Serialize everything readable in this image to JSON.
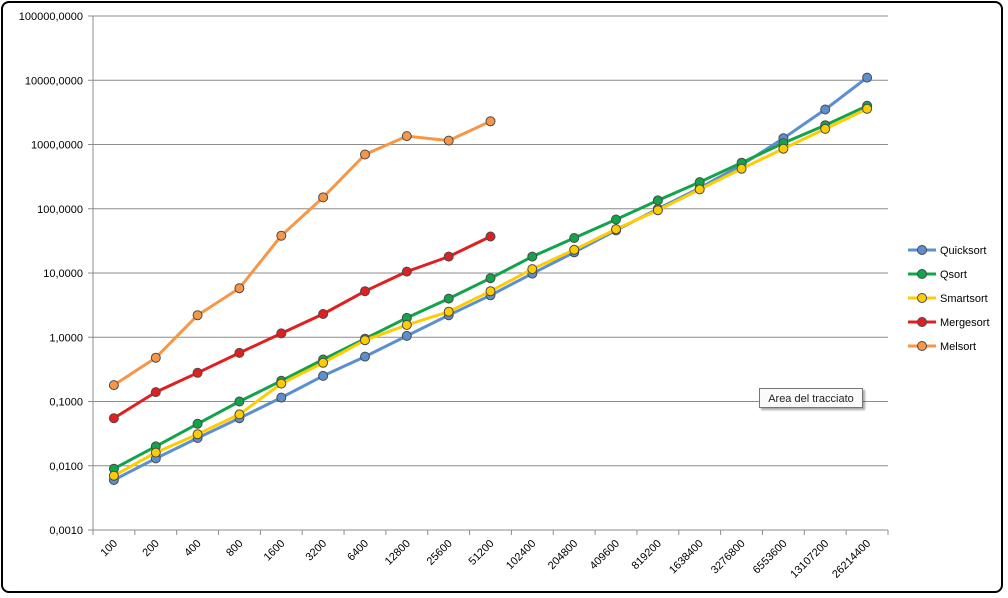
{
  "chart_data": {
    "type": "line",
    "yscale": "log",
    "ylim": [
      0.001,
      100000
    ],
    "grid": true,
    "legend_position": "right",
    "y_tick_labels": [
      "0,0010",
      "0,0100",
      "0,1000",
      "1,0000",
      "10,0000",
      "100,0000",
      "1000,0000",
      "10000,0000",
      "100000,0000"
    ],
    "categories": [
      "100",
      "200",
      "400",
      "800",
      "1600",
      "3200",
      "6400",
      "12800",
      "25600",
      "51200",
      "102400",
      "204800",
      "409600",
      "819200",
      "1638400",
      "3276800",
      "6553600",
      "13107200",
      "26214400"
    ],
    "series": [
      {
        "name": "Quicksort",
        "color": "#5b8fd0",
        "values": [
          0.006,
          0.013,
          0.027,
          0.055,
          0.115,
          0.25,
          0.5,
          1.05,
          2.2,
          4.5,
          9.8,
          21,
          46,
          100,
          210,
          480,
          1250,
          3500,
          11000
        ]
      },
      {
        "name": "Qsort",
        "color": "#12a44a",
        "values": [
          0.009,
          0.02,
          0.045,
          0.1,
          0.21,
          0.45,
          0.95,
          2.0,
          4.0,
          8.3,
          18,
          35,
          68,
          135,
          260,
          520,
          1050,
          2000,
          4000
        ]
      },
      {
        "name": "Smartsort",
        "color": "#ffcc00",
        "values": [
          0.007,
          0.016,
          0.031,
          0.063,
          0.19,
          0.4,
          0.9,
          1.55,
          2.5,
          5.2,
          11.5,
          23,
          48,
          95,
          200,
          420,
          860,
          1750,
          3600
        ]
      },
      {
        "name": "Mergesort",
        "color": "#e02020",
        "values": [
          0.055,
          0.14,
          0.28,
          0.57,
          1.15,
          2.3,
          5.2,
          10.5,
          18,
          37,
          null,
          null,
          null,
          null,
          null,
          null,
          null,
          null,
          null
        ]
      },
      {
        "name": "Melsort",
        "color": "#f79646",
        "values": [
          0.18,
          0.48,
          2.2,
          5.8,
          38,
          150,
          700,
          1350,
          1150,
          2300,
          null,
          null,
          null,
          null,
          null,
          null,
          null,
          null,
          null
        ]
      }
    ]
  },
  "tooltip_text": "Area del tracciato"
}
